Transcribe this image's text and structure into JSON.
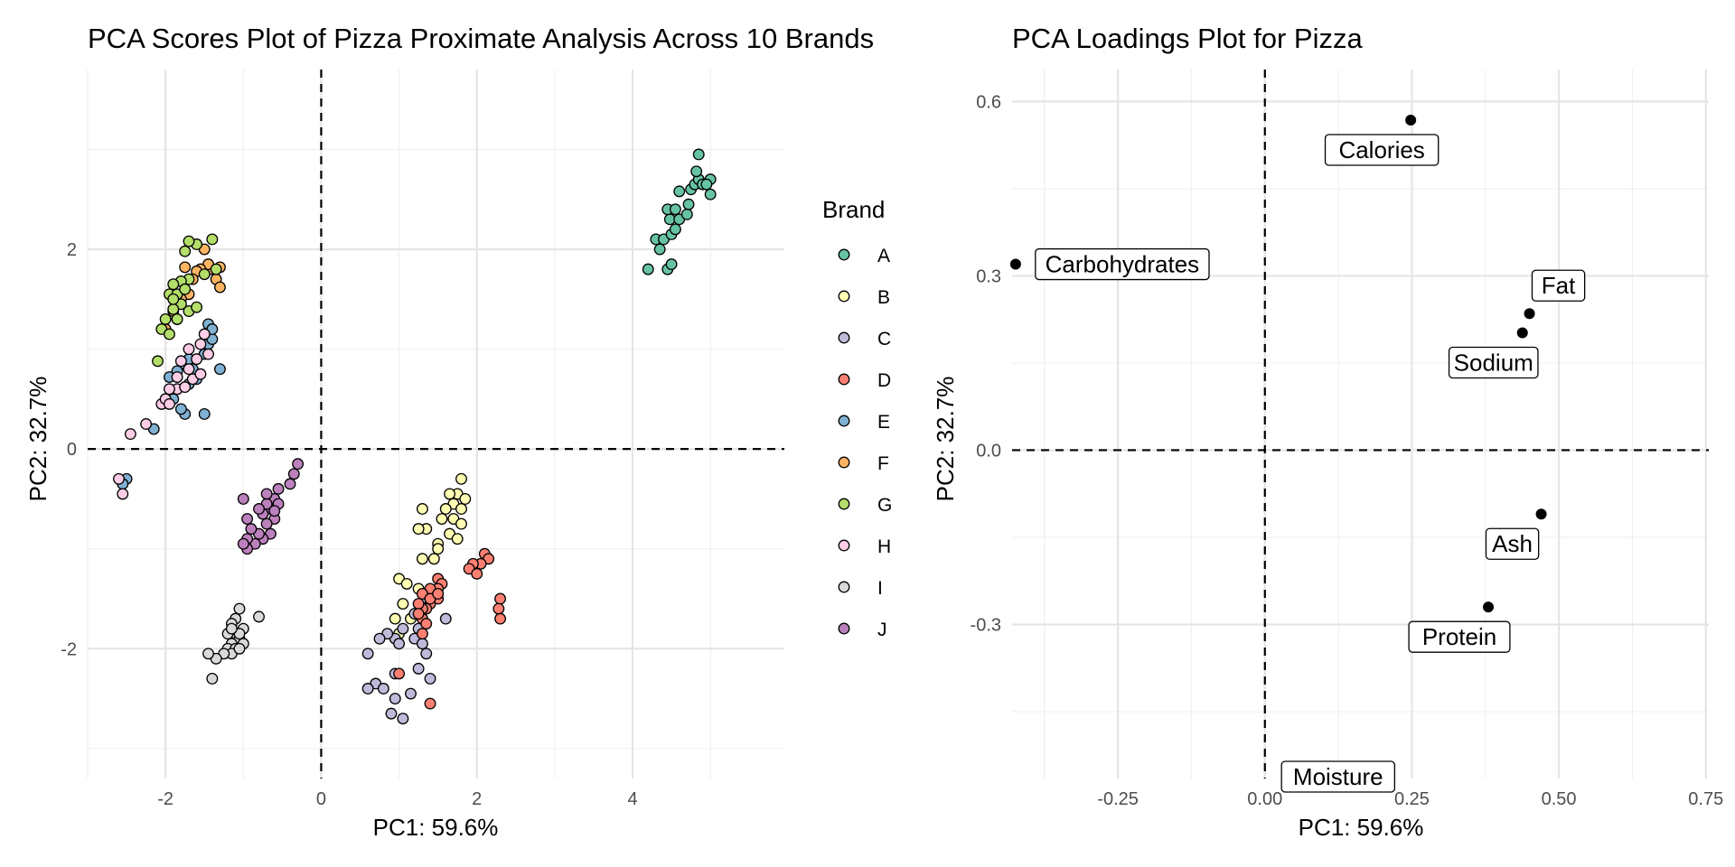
{
  "chart_data": [
    {
      "type": "scatter",
      "title": "PCA Scores Plot of Pizza Proximate Analysis Across 10 Brands",
      "xlabel": "PC1: 59.6%",
      "ylabel": "PC2: 32.7%",
      "xlim": [
        -3.0,
        5.95
      ],
      "ylim": [
        -3.3,
        3.8
      ],
      "xticks": [
        "-2",
        "0",
        "2",
        "4"
      ],
      "yticks": [
        "-2",
        "0",
        "2"
      ],
      "grid": true,
      "reference_lines": [
        "x=0 dashed",
        "y=0 dashed"
      ],
      "legend": {
        "title": "Brand",
        "position": "right",
        "entries": [
          "A",
          "B",
          "C",
          "D",
          "E",
          "F",
          "G",
          "H",
          "I",
          "J"
        ]
      },
      "colors": {
        "A": "#66c2a5",
        "B": "#ffffb3",
        "C": "#bebada",
        "D": "#fb8072",
        "E": "#80b1d3",
        "F": "#fdb462",
        "G": "#b3de69",
        "H": "#fccde5",
        "I": "#d9d9d9",
        "J": "#bc80bd"
      },
      "series": [
        {
          "name": "A",
          "points": [
            [
              4.2,
              1.8
            ],
            [
              4.35,
              2.0
            ],
            [
              4.45,
              1.8
            ],
            [
              4.5,
              1.85
            ],
            [
              4.3,
              2.1
            ],
            [
              4.4,
              2.1
            ],
            [
              4.5,
              2.15
            ],
            [
              4.55,
              2.2
            ],
            [
              4.48,
              2.3
            ],
            [
              4.6,
              2.3
            ],
            [
              4.45,
              2.4
            ],
            [
              4.55,
              2.4
            ],
            [
              4.7,
              2.35
            ],
            [
              4.72,
              2.45
            ],
            [
              4.6,
              2.58
            ],
            [
              4.75,
              2.6
            ],
            [
              4.8,
              2.65
            ],
            [
              4.85,
              2.7
            ],
            [
              4.9,
              2.65
            ],
            [
              4.82,
              2.78
            ],
            [
              5.0,
              2.7
            ],
            [
              4.95,
              2.65
            ],
            [
              5.0,
              2.55
            ],
            [
              4.85,
              2.95
            ]
          ]
        },
        {
          "name": "B",
          "points": [
            [
              1.8,
              -0.3
            ],
            [
              1.75,
              -0.45
            ],
            [
              1.85,
              -0.5
            ],
            [
              1.7,
              -0.55
            ],
            [
              1.6,
              -0.6
            ],
            [
              1.7,
              -0.7
            ],
            [
              1.8,
              -0.75
            ],
            [
              1.65,
              -0.85
            ],
            [
              1.55,
              -0.7
            ],
            [
              1.75,
              -0.9
            ],
            [
              1.3,
              -0.6
            ],
            [
              1.35,
              -0.8
            ],
            [
              1.25,
              -0.8
            ],
            [
              1.5,
              -0.95
            ],
            [
              1.45,
              -1.1
            ],
            [
              1.5,
              -1.0
            ],
            [
              1.3,
              -1.1
            ],
            [
              1.0,
              -1.3
            ],
            [
              1.1,
              -1.35
            ],
            [
              1.05,
              -1.55
            ],
            [
              1.25,
              -1.4
            ],
            [
              0.95,
              -1.7
            ],
            [
              1.15,
              -1.7
            ],
            [
              1.0,
              -1.85
            ],
            [
              1.8,
              -0.6
            ],
            [
              1.65,
              -0.45
            ]
          ]
        },
        {
          "name": "C",
          "points": [
            [
              1.6,
              -1.7
            ],
            [
              1.3,
              -1.55
            ],
            [
              1.2,
              -1.65
            ],
            [
              1.25,
              -1.8
            ],
            [
              1.05,
              -1.8
            ],
            [
              0.95,
              -1.9
            ],
            [
              1.2,
              -1.9
            ],
            [
              0.85,
              -1.85
            ],
            [
              0.75,
              -1.9
            ],
            [
              1.0,
              -1.95
            ],
            [
              1.3,
              -1.95
            ],
            [
              1.35,
              -2.05
            ],
            [
              0.6,
              -2.05
            ],
            [
              1.25,
              -2.2
            ],
            [
              0.95,
              -2.25
            ],
            [
              0.7,
              -2.35
            ],
            [
              0.6,
              -2.4
            ],
            [
              0.8,
              -2.4
            ],
            [
              0.95,
              -2.5
            ],
            [
              1.15,
              -2.45
            ],
            [
              0.9,
              -2.65
            ],
            [
              1.05,
              -2.7
            ],
            [
              1.4,
              -2.3
            ]
          ]
        },
        {
          "name": "D",
          "points": [
            [
              1.5,
              -1.3
            ],
            [
              1.55,
              -1.35
            ],
            [
              1.5,
              -1.4
            ],
            [
              1.45,
              -1.45
            ],
            [
              1.4,
              -1.4
            ],
            [
              1.5,
              -1.5
            ],
            [
              1.4,
              -1.55
            ],
            [
              1.35,
              -1.6
            ],
            [
              1.3,
              -1.6
            ],
            [
              1.25,
              -1.55
            ],
            [
              1.3,
              -1.7
            ],
            [
              1.35,
              -1.75
            ],
            [
              1.25,
              -1.65
            ],
            [
              1.3,
              -1.45
            ],
            [
              1.4,
              -1.5
            ],
            [
              1.5,
              -1.45
            ],
            [
              2.1,
              -1.05
            ],
            [
              2.15,
              -1.1
            ],
            [
              2.05,
              -1.15
            ],
            [
              1.95,
              -1.15
            ],
            [
              1.9,
              -1.2
            ],
            [
              2.0,
              -1.25
            ],
            [
              2.3,
              -1.5
            ],
            [
              2.28,
              -1.6
            ],
            [
              2.3,
              -1.7
            ],
            [
              1.0,
              -2.25
            ],
            [
              1.4,
              -2.55
            ],
            [
              1.3,
              -1.85
            ]
          ]
        },
        {
          "name": "E",
          "points": [
            [
              -1.3,
              0.8
            ],
            [
              -1.5,
              0.35
            ],
            [
              -1.75,
              0.35
            ],
            [
              -1.8,
              0.4
            ],
            [
              -1.9,
              0.5
            ],
            [
              -1.85,
              0.6
            ],
            [
              -1.7,
              0.65
            ],
            [
              -1.6,
              0.7
            ],
            [
              -1.65,
              0.8
            ],
            [
              -1.75,
              0.85
            ],
            [
              -1.7,
              0.9
            ],
            [
              -1.5,
              0.95
            ],
            [
              -1.45,
              1.05
            ],
            [
              -1.4,
              1.1
            ],
            [
              -1.45,
              1.25
            ],
            [
              -1.4,
              1.2
            ],
            [
              -2.15,
              0.2
            ],
            [
              -2.5,
              -0.3
            ],
            [
              -2.55,
              -0.35
            ],
            [
              -1.95,
              0.72
            ],
            [
              -1.85,
              0.78
            ]
          ]
        },
        {
          "name": "F",
          "points": [
            [
              -1.4,
              1.8
            ],
            [
              -1.3,
              1.82
            ],
            [
              -1.35,
              1.7
            ],
            [
              -1.3,
              1.62
            ],
            [
              -1.45,
              1.85
            ],
            [
              -1.55,
              1.8
            ],
            [
              -1.6,
              1.78
            ],
            [
              -1.65,
              1.7
            ],
            [
              -1.75,
              1.82
            ],
            [
              -1.5,
              2.0
            ],
            [
              -1.7,
              1.55
            ],
            [
              -1.8,
              1.5
            ],
            [
              -1.9,
              1.38
            ],
            [
              -1.85,
              1.3
            ],
            [
              -2.0,
              1.2
            ]
          ]
        },
        {
          "name": "G",
          "points": [
            [
              -1.4,
              2.1
            ],
            [
              -1.6,
              2.05
            ],
            [
              -1.7,
              2.08
            ],
            [
              -1.75,
              1.98
            ],
            [
              -1.35,
              1.8
            ],
            [
              -1.5,
              1.75
            ],
            [
              -1.7,
              1.7
            ],
            [
              -1.8,
              1.68
            ],
            [
              -1.9,
              1.65
            ],
            [
              -1.95,
              1.55
            ],
            [
              -1.85,
              1.55
            ],
            [
              -1.75,
              1.6
            ],
            [
              -1.8,
              1.45
            ],
            [
              -1.9,
              1.4
            ],
            [
              -1.7,
              1.38
            ],
            [
              -1.6,
              1.42
            ],
            [
              -1.85,
              1.3
            ],
            [
              -2.0,
              1.3
            ],
            [
              -2.05,
              1.2
            ],
            [
              -1.95,
              1.15
            ],
            [
              -2.1,
              0.88
            ],
            [
              -1.9,
              1.5
            ]
          ]
        },
        {
          "name": "H",
          "points": [
            [
              -2.45,
              0.15
            ],
            [
              -2.6,
              -0.3
            ],
            [
              -2.55,
              -0.45
            ],
            [
              -2.25,
              0.25
            ],
            [
              -2.05,
              0.45
            ],
            [
              -2.0,
              0.5
            ],
            [
              -1.95,
              0.45
            ],
            [
              -1.85,
              0.6
            ],
            [
              -1.75,
              0.62
            ],
            [
              -1.65,
              0.7
            ],
            [
              -1.55,
              0.75
            ],
            [
              -1.7,
              0.8
            ],
            [
              -1.6,
              0.9
            ],
            [
              -1.7,
              1.0
            ],
            [
              -1.55,
              1.05
            ],
            [
              -1.5,
              1.15
            ],
            [
              -1.45,
              0.95
            ],
            [
              -1.8,
              0.88
            ],
            [
              -1.95,
              0.6
            ],
            [
              -1.85,
              0.72
            ]
          ]
        },
        {
          "name": "I",
          "points": [
            [
              -1.05,
              -1.6
            ],
            [
              -1.1,
              -1.7
            ],
            [
              -1.15,
              -1.75
            ],
            [
              -1.0,
              -1.8
            ],
            [
              -1.1,
              -1.85
            ],
            [
              -1.2,
              -1.85
            ],
            [
              -1.05,
              -1.9
            ],
            [
              -1.15,
              -1.95
            ],
            [
              -1.2,
              -2.0
            ],
            [
              -1.0,
              -1.95
            ],
            [
              -1.1,
              -2.0
            ],
            [
              -1.15,
              -2.05
            ],
            [
              -1.25,
              -2.05
            ],
            [
              -1.35,
              -2.1
            ],
            [
              -1.45,
              -2.05
            ],
            [
              -1.4,
              -2.3
            ],
            [
              -0.8,
              -1.68
            ],
            [
              -1.05,
              -1.85
            ],
            [
              -1.15,
              -1.8
            ],
            [
              -1.05,
              -2.0
            ]
          ]
        },
        {
          "name": "J",
          "points": [
            [
              -0.3,
              -0.15
            ],
            [
              -0.35,
              -0.25
            ],
            [
              -0.4,
              -0.35
            ],
            [
              -0.55,
              -0.4
            ],
            [
              -0.6,
              -0.5
            ],
            [
              -0.65,
              -0.6
            ],
            [
              -0.7,
              -0.55
            ],
            [
              -0.75,
              -0.65
            ],
            [
              -0.6,
              -0.7
            ],
            [
              -0.7,
              -0.75
            ],
            [
              -0.65,
              -0.85
            ],
            [
              -0.75,
              -0.9
            ],
            [
              -0.85,
              -0.95
            ],
            [
              -0.8,
              -0.85
            ],
            [
              -0.9,
              -0.8
            ],
            [
              -0.95,
              -0.9
            ],
            [
              -0.95,
              -1.0
            ],
            [
              -1.0,
              -0.95
            ],
            [
              -0.95,
              -0.7
            ],
            [
              -1.0,
              -0.5
            ],
            [
              -0.55,
              -0.55
            ],
            [
              -0.6,
              -0.62
            ],
            [
              -0.8,
              -0.6
            ],
            [
              -0.7,
              -0.45
            ]
          ]
        }
      ]
    },
    {
      "type": "scatter",
      "title": "PCA Loadings Plot for Pizza",
      "xlabel": "PC1: 59.6%",
      "ylabel": "PC2: 32.7%",
      "xlim": [
        -0.43,
        0.755
      ],
      "ylim": [
        -0.565,
        0.655
      ],
      "xticks": [
        "-0.25",
        "0.00",
        "0.25",
        "0.50",
        "0.75"
      ],
      "yticks": [
        "-0.3",
        "0.0",
        "0.3",
        "0.6"
      ],
      "grid": true,
      "reference_lines": [
        "x=0 dashed",
        "y=0 dashed"
      ],
      "points": [
        {
          "label": "Calories",
          "x": 0.248,
          "y": 0.568
        },
        {
          "label": "Carbohydrates",
          "x": -0.424,
          "y": 0.32
        },
        {
          "label": "Fat",
          "x": 0.45,
          "y": 0.235
        },
        {
          "label": "Sodium",
          "x": 0.438,
          "y": 0.202
        },
        {
          "label": "Ash",
          "x": 0.47,
          "y": -0.11
        },
        {
          "label": "Protein",
          "x": 0.38,
          "y": -0.27
        },
        {
          "label": "Moisture",
          "x": 0.063,
          "y": -0.565
        }
      ]
    }
  ]
}
